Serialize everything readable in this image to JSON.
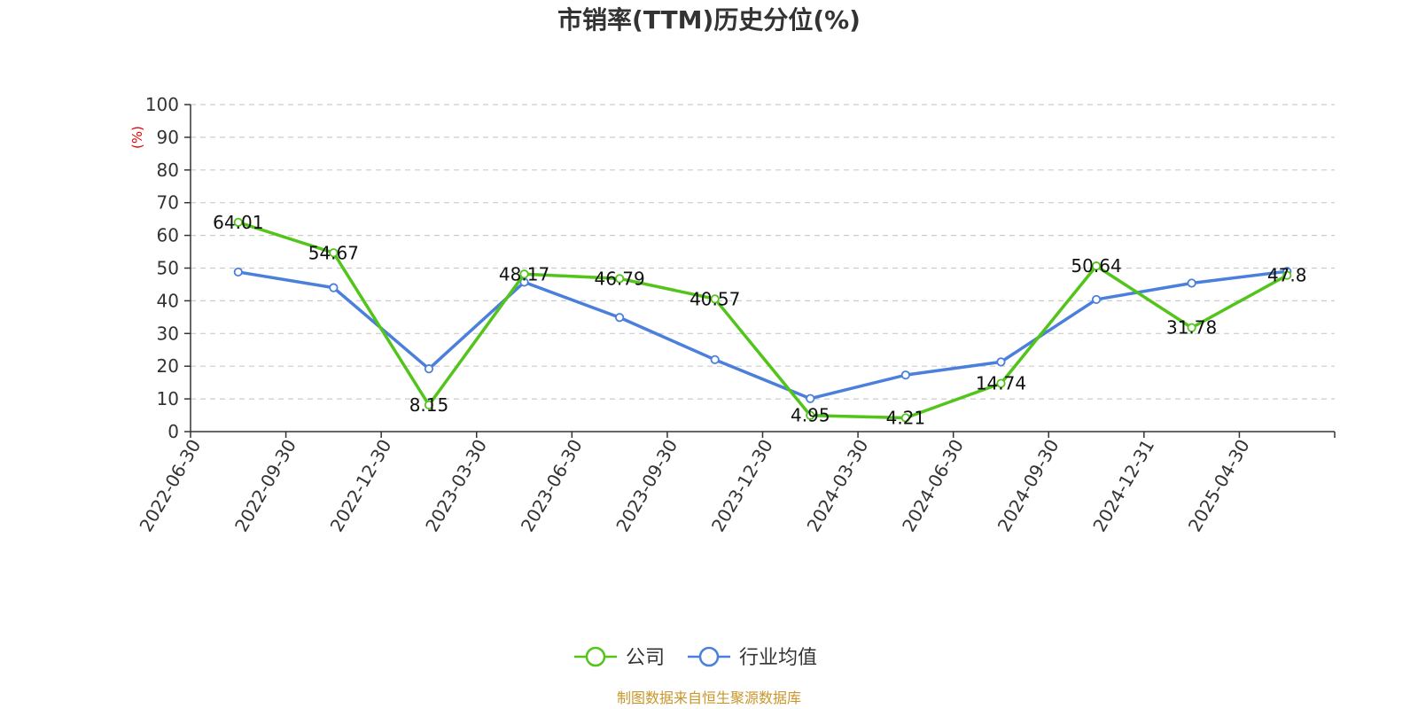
{
  "chart_data": {
    "type": "line",
    "title": "市销率(TTM)历史分位(%)",
    "ylabel": "(%)",
    "xlabel": "",
    "ylim": [
      0,
      100
    ],
    "yticks": [
      0,
      10,
      20,
      30,
      40,
      50,
      60,
      70,
      80,
      90,
      100
    ],
    "grid": "horizontal dashed",
    "legend_position": "bottom-center",
    "categories": [
      "2022-06-30",
      "2022-09-30",
      "2022-12-30",
      "2023-03-30",
      "2023-06-30",
      "2023-09-30",
      "2023-12-30",
      "2024-03-30",
      "2024-06-30",
      "2024-09-30",
      "2024-12-31",
      "2025-04-30"
    ],
    "series": [
      {
        "name": "公司",
        "color": "#52c41a",
        "values": [
          64.01,
          54.67,
          8.15,
          48.17,
          46.79,
          40.57,
          4.95,
          4.21,
          14.74,
          50.64,
          31.78,
          47.8
        ],
        "labels": [
          "64.01",
          "54.67",
          "8.15",
          "48.17",
          "46.79",
          "40.57",
          "4.95",
          "4.21",
          "14.74",
          "50.64",
          "31.78",
          "47.8"
        ]
      },
      {
        "name": "行业均值",
        "color": "#4a7fdc",
        "values": [
          48.8,
          44.0,
          19.2,
          45.7,
          34.9,
          22.0,
          10.1,
          17.3,
          21.3,
          40.4,
          45.4,
          49.0
        ]
      }
    ]
  },
  "source": "制图数据来自恒生聚源数据库"
}
